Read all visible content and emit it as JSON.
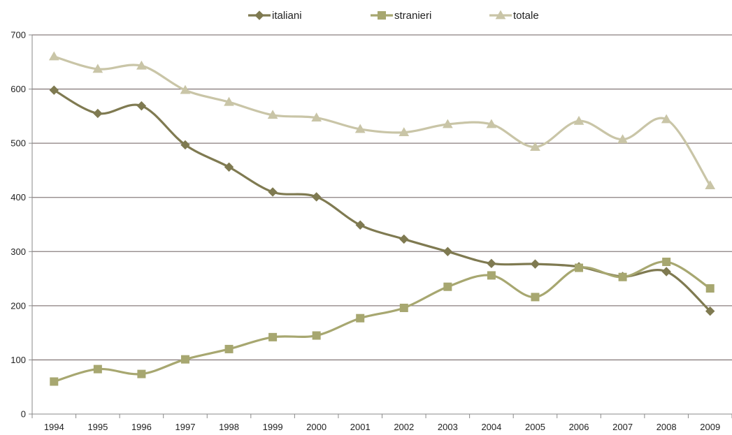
{
  "chart_data": {
    "type": "line",
    "title": "",
    "xlabel": "",
    "ylabel": "",
    "ylim": [
      0,
      700
    ],
    "ytick_step": 100,
    "grid": true,
    "legend_position": "top-center",
    "categories": [
      "1994",
      "1995",
      "1996",
      "1997",
      "1998",
      "1999",
      "2000",
      "2001",
      "2002",
      "2003",
      "2004",
      "2005",
      "2006",
      "2007",
      "2008",
      "2009"
    ],
    "series": [
      {
        "name": "italiani",
        "marker": "diamond",
        "color": "#7f7a51",
        "values": [
          598,
          555,
          569,
          497,
          456,
          410,
          401,
          349,
          323,
          300,
          278,
          277,
          272,
          254,
          263,
          190
        ]
      },
      {
        "name": "stranieri",
        "marker": "square",
        "color": "#a7a770",
        "values": [
          60,
          83,
          74,
          101,
          120,
          142,
          145,
          177,
          196,
          235,
          256,
          216,
          270,
          253,
          281,
          232
        ]
      },
      {
        "name": "totale",
        "marker": "triangle",
        "color": "#c9c5a7",
        "values": [
          660,
          637,
          643,
          598,
          576,
          552,
          547,
          526,
          520,
          535,
          535,
          493,
          541,
          507,
          544,
          422
        ]
      }
    ]
  }
}
